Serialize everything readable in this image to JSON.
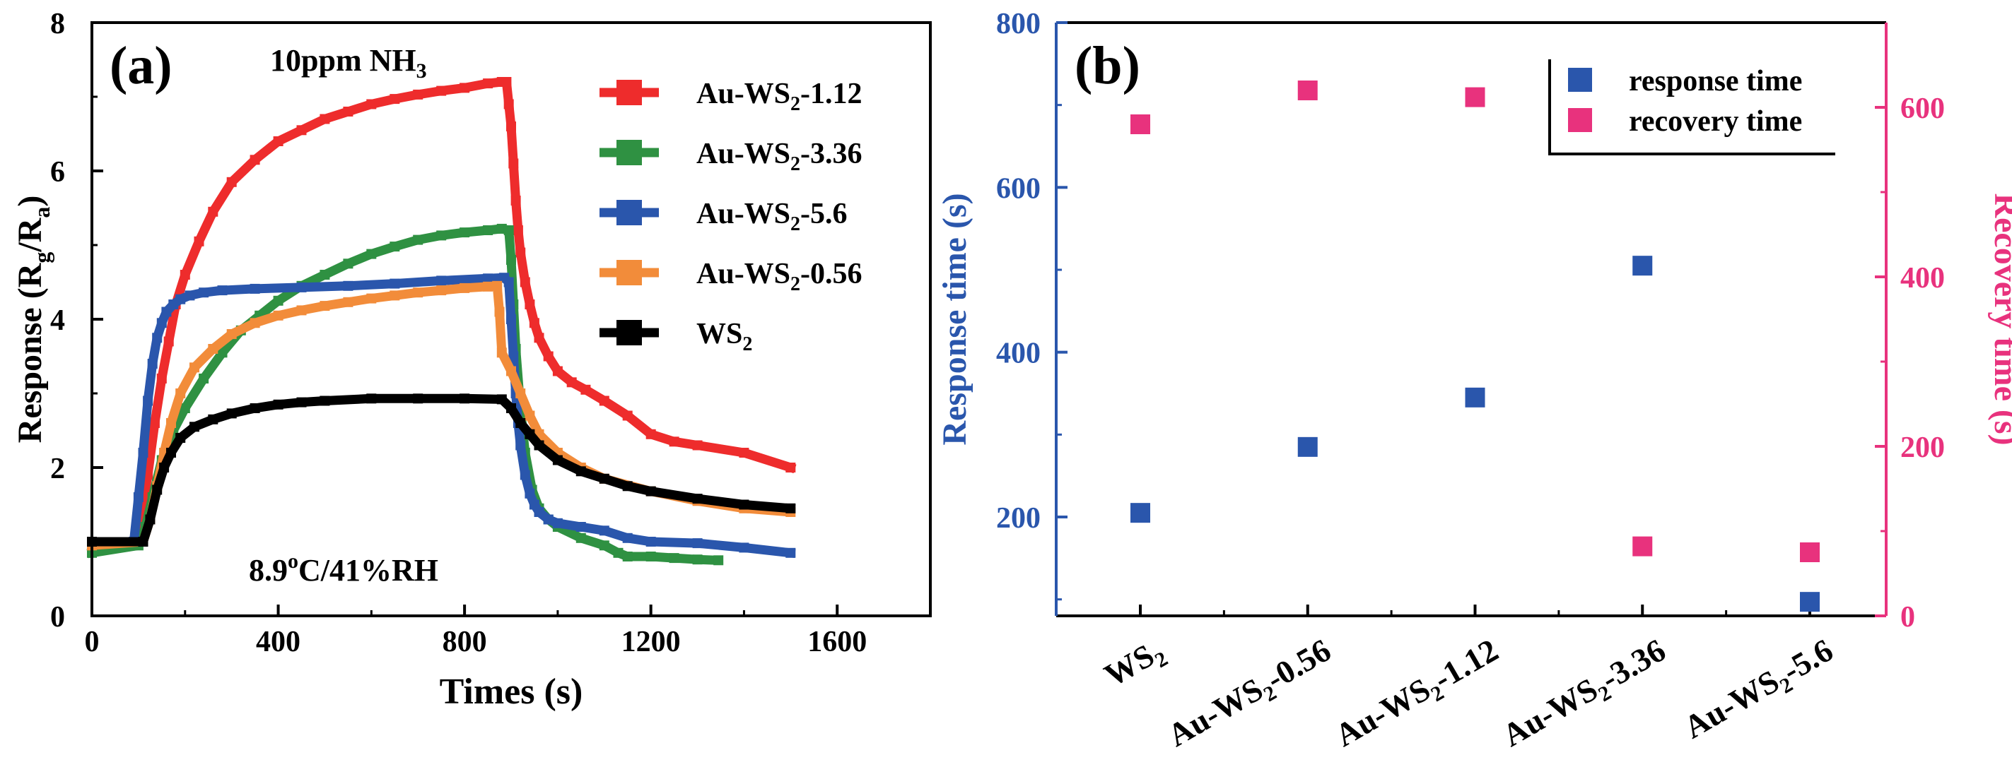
{
  "chart_data": [
    {
      "panel": "(a)",
      "type": "line",
      "title": "",
      "xlabel": "Times (s)",
      "ylabel": "Response (Rg/Ra)",
      "ylabel_parts": [
        "Response (R",
        "g",
        "/R",
        "a",
        ")"
      ],
      "xlim": [
        0,
        1800
      ],
      "ylim": [
        0,
        8
      ],
      "xticks": [
        0,
        400,
        800,
        1200,
        1600
      ],
      "yticks": [
        0,
        2,
        4,
        6,
        8
      ],
      "grid": false,
      "legend_position": "top-right",
      "annotations": {
        "gas": "10ppm NH3",
        "gas_parts": [
          "10ppm NH",
          "3"
        ],
        "condition": "8.9oC/41%RH",
        "condition_parts": [
          "8.9",
          "o",
          "C/41%RH"
        ]
      },
      "series": [
        {
          "name": "Au-WS2-1.12",
          "label_parts": [
            "Au-WS",
            "2",
            "-1.12"
          ],
          "color": "#ee2c2c",
          "style": "square",
          "x": [
            0,
            90,
            105,
            120,
            135,
            150,
            165,
            180,
            200,
            230,
            260,
            300,
            350,
            400,
            450,
            500,
            550,
            600,
            650,
            700,
            750,
            800,
            850,
            880,
            890,
            895,
            900,
            905,
            910,
            915,
            920,
            930,
            940,
            950,
            960,
            980,
            1000,
            1030,
            1060,
            1100,
            1150,
            1200,
            1250,
            1300,
            1400,
            1500
          ],
          "y": [
            0.95,
            1.0,
            1.3,
            1.9,
            2.6,
            3.2,
            3.7,
            4.2,
            4.6,
            5.05,
            5.45,
            5.85,
            6.15,
            6.4,
            6.55,
            6.7,
            6.8,
            6.9,
            6.97,
            7.03,
            7.08,
            7.12,
            7.18,
            7.2,
            7.2,
            6.9,
            6.6,
            6.1,
            5.6,
            5.2,
            4.9,
            4.5,
            4.2,
            3.95,
            3.75,
            3.5,
            3.3,
            3.15,
            3.05,
            2.9,
            2.7,
            2.45,
            2.35,
            2.3,
            2.2,
            2.0
          ]
        },
        {
          "name": "Au-WS2-3.36",
          "label_parts": [
            "Au-WS",
            "2",
            "-3.36"
          ],
          "color": "#2f9142",
          "style": "square",
          "x": [
            0,
            100,
            115,
            130,
            150,
            175,
            200,
            240,
            280,
            320,
            360,
            400,
            450,
            500,
            550,
            600,
            650,
            700,
            750,
            800,
            850,
            880,
            895,
            900,
            905,
            910,
            920,
            930,
            945,
            960,
            980,
            1000,
            1050,
            1100,
            1130,
            1150,
            1200,
            1250,
            1300,
            1345
          ],
          "y": [
            0.85,
            0.95,
            1.2,
            1.6,
            2.1,
            2.5,
            2.8,
            3.2,
            3.55,
            3.85,
            4.05,
            4.25,
            4.45,
            4.6,
            4.75,
            4.88,
            4.98,
            5.07,
            5.13,
            5.17,
            5.2,
            5.22,
            5.2,
            4.8,
            4.2,
            3.6,
            2.8,
            2.2,
            1.7,
            1.45,
            1.3,
            1.2,
            1.05,
            0.95,
            0.85,
            0.8,
            0.8,
            0.78,
            0.76,
            0.75
          ]
        },
        {
          "name": "Au-WS2-5.6",
          "label_parts": [
            "Au-WS",
            "2",
            "-5.6"
          ],
          "color": "#2a56ac",
          "style": "square",
          "x": [
            0,
            90,
            100,
            110,
            120,
            130,
            140,
            150,
            160,
            175,
            190,
            210,
            240,
            280,
            350,
            450,
            550,
            650,
            750,
            850,
            885,
            895,
            900,
            905,
            910,
            915,
            920,
            930,
            940,
            950,
            960,
            980,
            1000,
            1050,
            1100,
            1150,
            1200,
            1300,
            1400,
            1500
          ],
          "y": [
            1.0,
            1.0,
            1.6,
            2.2,
            2.9,
            3.4,
            3.75,
            3.95,
            4.1,
            4.2,
            4.27,
            4.32,
            4.36,
            4.39,
            4.41,
            4.43,
            4.45,
            4.48,
            4.52,
            4.55,
            4.56,
            4.5,
            4.0,
            3.5,
            3.0,
            2.6,
            2.3,
            1.9,
            1.65,
            1.5,
            1.4,
            1.3,
            1.25,
            1.2,
            1.15,
            1.05,
            1.0,
            0.98,
            0.92,
            0.85
          ]
        },
        {
          "name": "Au-WS2-0.56",
          "label_parts": [
            "Au-WS",
            "2",
            "-0.56"
          ],
          "color": "#f28c3a",
          "style": "square",
          "x": [
            0,
            110,
            125,
            140,
            155,
            170,
            190,
            220,
            260,
            300,
            350,
            400,
            450,
            500,
            550,
            600,
            650,
            700,
            750,
            800,
            850,
            870,
            875,
            880,
            900,
            920,
            940,
            960,
            1000,
            1050,
            1100,
            1200,
            1300,
            1400,
            1500
          ],
          "y": [
            0.95,
            1.0,
            1.3,
            1.75,
            2.2,
            2.6,
            3.0,
            3.35,
            3.6,
            3.8,
            3.95,
            4.05,
            4.12,
            4.18,
            4.23,
            4.28,
            4.32,
            4.36,
            4.39,
            4.42,
            4.44,
            4.45,
            4.1,
            3.55,
            3.3,
            3.0,
            2.7,
            2.45,
            2.2,
            2.0,
            1.85,
            1.68,
            1.55,
            1.45,
            1.4
          ]
        },
        {
          "name": "WS2",
          "label_parts": [
            "WS",
            "2"
          ],
          "color": "#000000",
          "style": "square",
          "x": [
            0,
            110,
            125,
            140,
            155,
            170,
            190,
            220,
            260,
            300,
            350,
            400,
            450,
            500,
            600,
            700,
            800,
            880,
            900,
            920,
            940,
            960,
            1000,
            1050,
            1100,
            1150,
            1200,
            1300,
            1400,
            1500
          ],
          "y": [
            1.0,
            1.0,
            1.3,
            1.7,
            2.0,
            2.2,
            2.4,
            2.55,
            2.65,
            2.73,
            2.8,
            2.85,
            2.88,
            2.9,
            2.93,
            2.93,
            2.93,
            2.92,
            2.8,
            2.6,
            2.45,
            2.3,
            2.1,
            1.95,
            1.85,
            1.75,
            1.68,
            1.58,
            1.5,
            1.45
          ]
        }
      ]
    },
    {
      "panel": "(b)",
      "type": "scatter",
      "title": "",
      "xlabel": "",
      "ylabel": "Response time (s)",
      "y2label": "Recovery time (s)",
      "ylim": [
        80,
        800
      ],
      "y2lim": [
        0,
        700
      ],
      "yticks": [
        200,
        400,
        600,
        800
      ],
      "y2ticks": [
        0,
        200,
        400,
        600
      ],
      "grid": false,
      "legend_position": "top-right",
      "categories": [
        "WS2",
        "Au-WS2-0.56",
        "Au-WS2-1.12",
        "Au-WS2-3.36",
        "Au-WS2-5.6"
      ],
      "category_parts": [
        [
          "WS",
          "2",
          ""
        ],
        [
          "Au-WS",
          "2",
          "-0.56"
        ],
        [
          "Au-WS",
          "2",
          "-1.12"
        ],
        [
          "Au-WS",
          "2",
          "-3.36"
        ],
        [
          "Au-WS",
          "2",
          "-5.6"
        ]
      ],
      "series": [
        {
          "name": "response time",
          "axis": "left",
          "color": "#2a56ac",
          "values": [
            205,
            285,
            345,
            505,
            97
          ]
        },
        {
          "name": "recovery time",
          "axis": "right",
          "color": "#e8327d",
          "values": [
            580,
            620,
            612,
            82,
            75
          ]
        }
      ]
    }
  ]
}
